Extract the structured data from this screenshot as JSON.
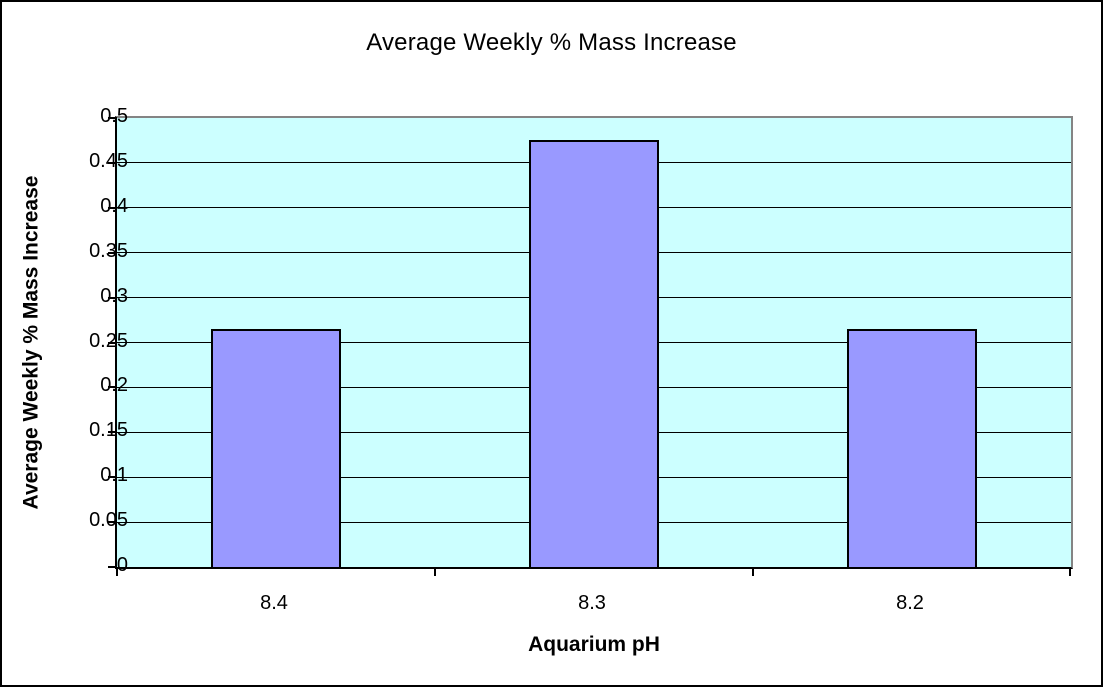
{
  "chart_data": {
    "type": "bar",
    "title": "Average Weekly % Mass Increase",
    "xlabel": "Aquarium pH",
    "ylabel": "Average Weekly % Mass Increase",
    "categories": [
      "8.4",
      "8.3",
      "8.2"
    ],
    "values": [
      0.265,
      0.475,
      0.265
    ],
    "ylim": [
      0,
      0.5
    ],
    "ytick_step": 0.05,
    "ytick_labels": [
      "0",
      "0.05",
      "0.1",
      "0.15",
      "0.2",
      "0.25",
      "0.3",
      "0.35",
      "0.4",
      "0.45",
      "0.5"
    ],
    "grid": "horizontal",
    "legend": "none",
    "colors": {
      "bar_fill": "#9999ff",
      "bar_border": "#000000",
      "plot_background": "#ccffff",
      "gridline": "#000000",
      "plot_border_top_right": "#848484",
      "axis_line": "#000000",
      "chart_background": "#ffffff",
      "chart_border": "#000000",
      "text": "#000000"
    }
  }
}
